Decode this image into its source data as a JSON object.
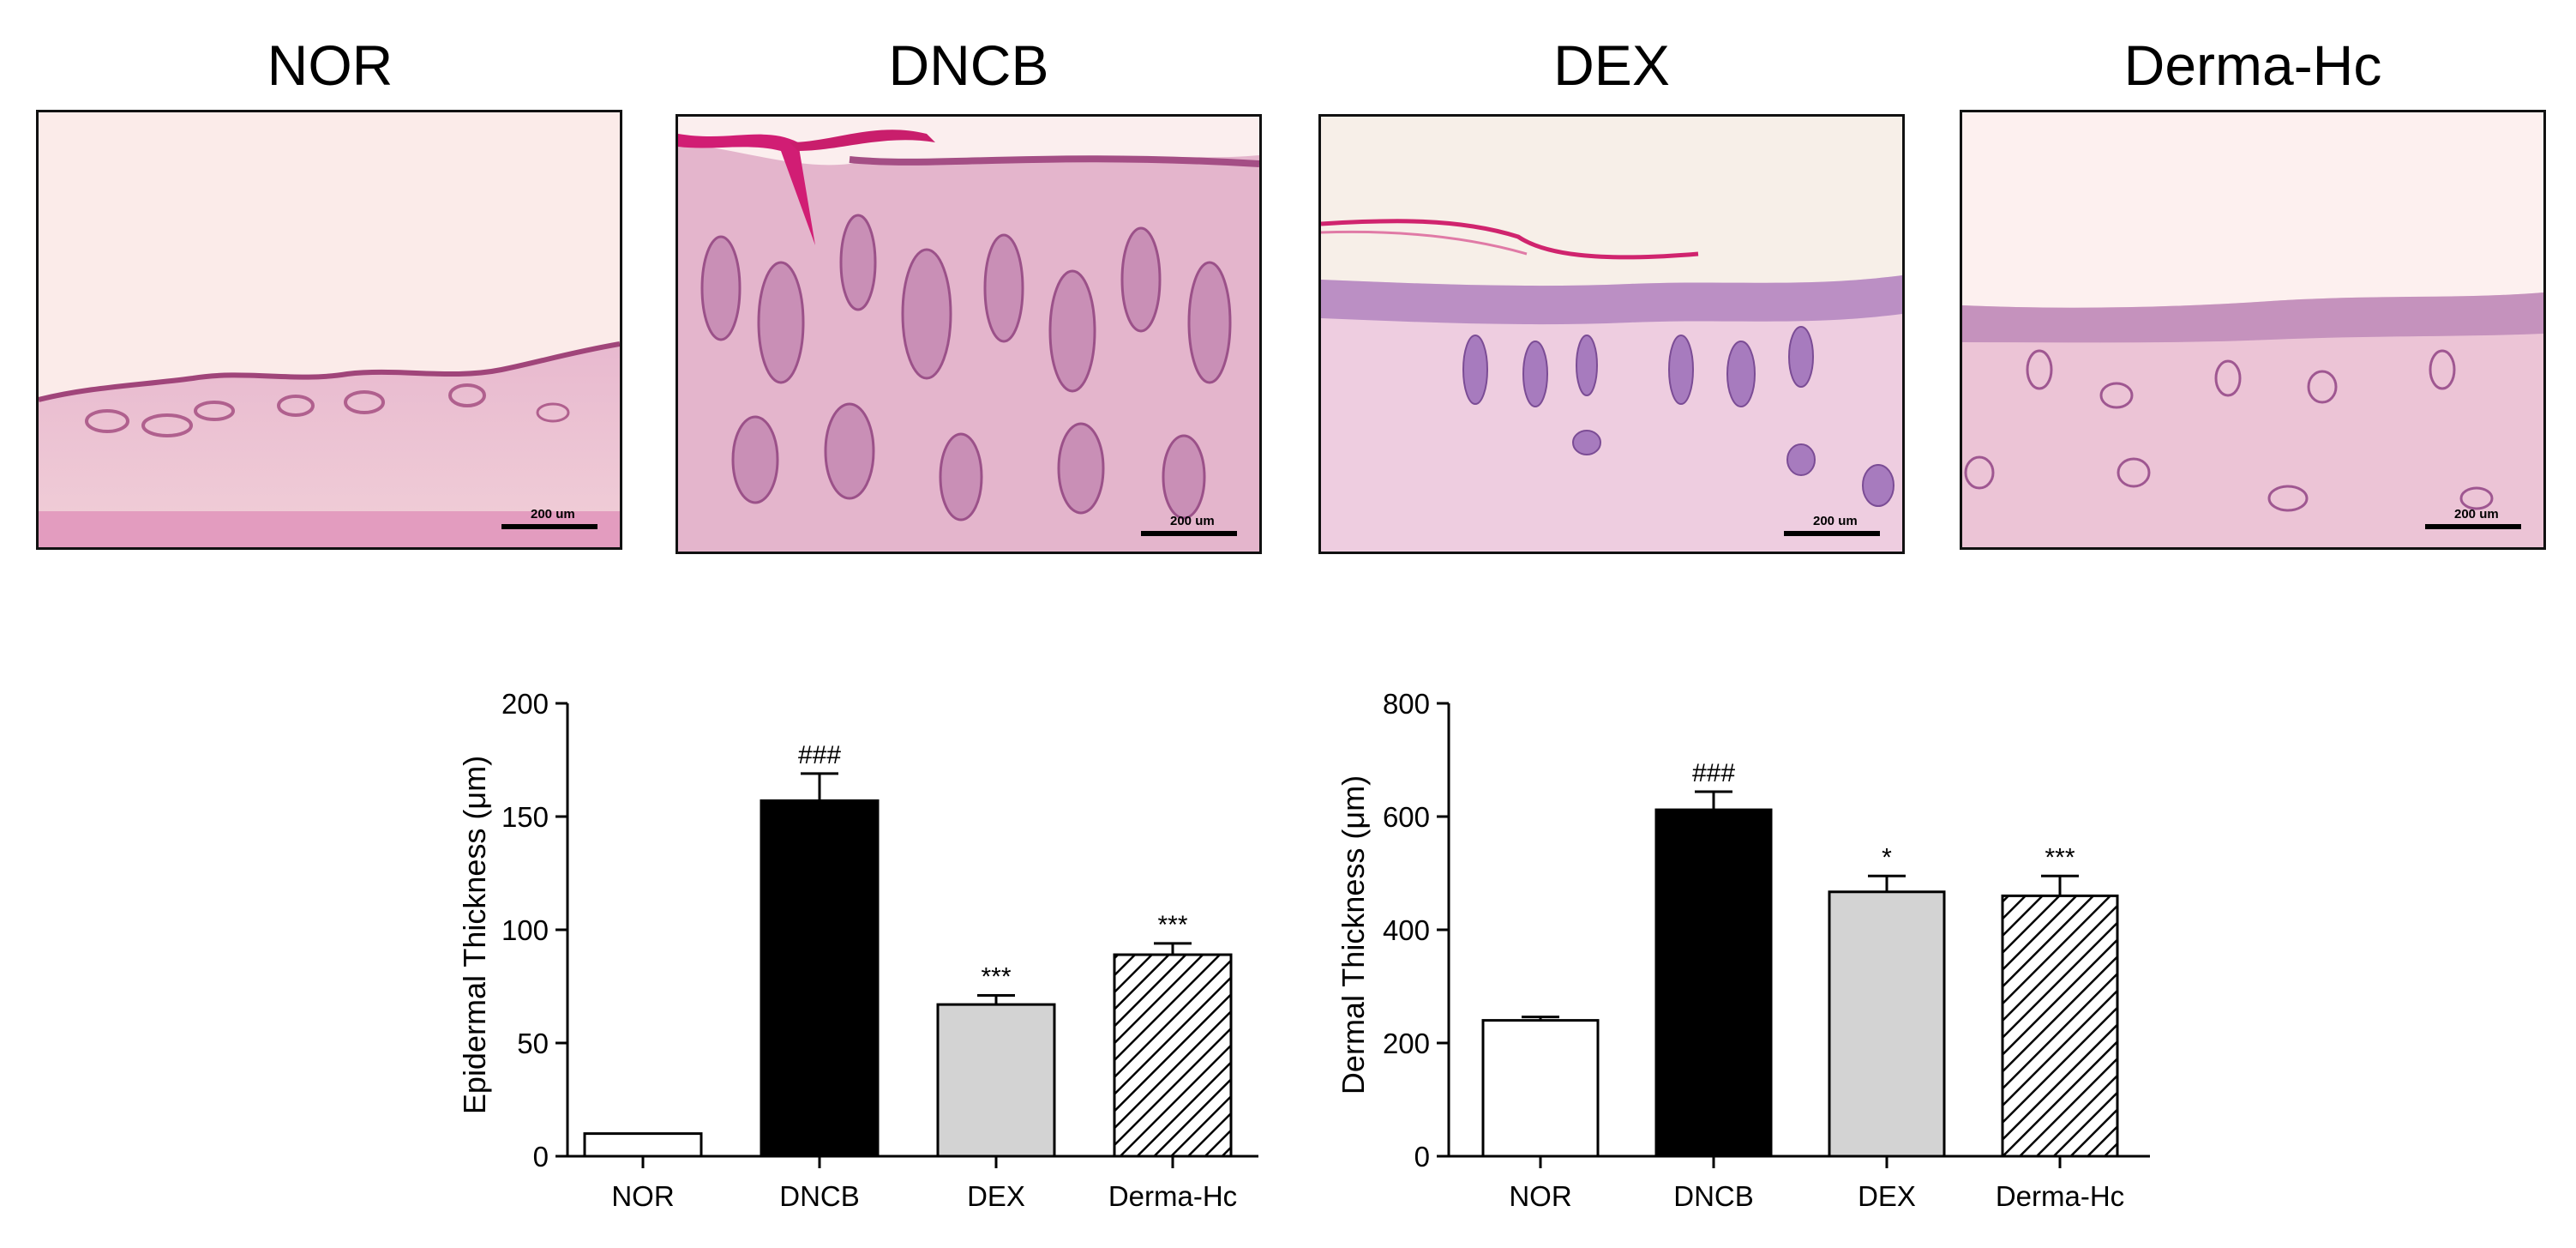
{
  "panels": [
    {
      "title": "NOR",
      "scale_bar": "200 um"
    },
    {
      "title": "DNCB",
      "scale_bar": "200 um"
    },
    {
      "title": "DEX",
      "scale_bar": "200 um"
    },
    {
      "title": "Derma-Hc",
      "scale_bar": "200 um"
    }
  ],
  "colors": {
    "NOR": "#ffffff",
    "DNCB": "#000000",
    "DEX": "#d3d3d3",
    "Derma-Hc": "hatched"
  },
  "chart_data": [
    {
      "type": "bar",
      "categories": [
        "NOR",
        "DNCB",
        "DEX",
        "Derma-Hc"
      ],
      "values": [
        10,
        157,
        67,
        89
      ],
      "errors": [
        0,
        12,
        4,
        5
      ],
      "significance": [
        "",
        "###",
        "***",
        "***"
      ],
      "ylabel": "Epidermal Thickness (μm)",
      "ylim": [
        0,
        200
      ],
      "yticks": [
        0,
        50,
        100,
        150,
        200
      ],
      "fills": [
        "white",
        "black",
        "lightgray",
        "hatched"
      ]
    },
    {
      "type": "bar",
      "categories": [
        "NOR",
        "DNCB",
        "DEX",
        "Derma-Hc"
      ],
      "values": [
        240,
        612,
        467,
        460
      ],
      "errors": [
        6,
        32,
        28,
        35
      ],
      "significance": [
        "",
        "###",
        "*",
        "***"
      ],
      "ylabel": "Dermal Thickness (μm)",
      "ylim": [
        0,
        800
      ],
      "yticks": [
        0,
        200,
        400,
        600,
        800
      ],
      "fills": [
        "white",
        "black",
        "lightgray",
        "hatched"
      ]
    }
  ]
}
